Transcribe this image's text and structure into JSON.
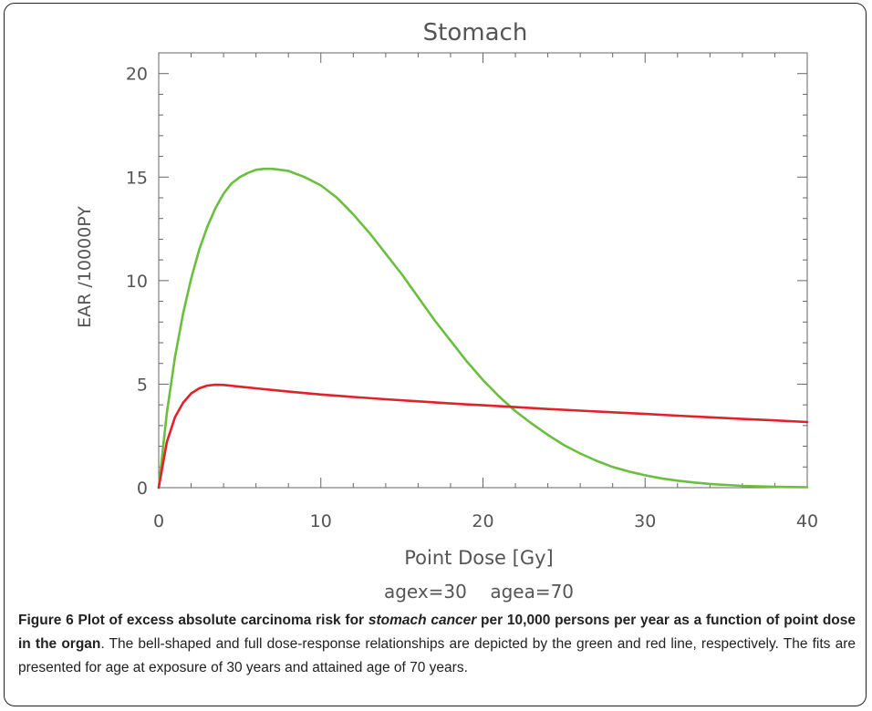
{
  "chart_data": {
    "type": "line",
    "title": "Stomach",
    "xlabel": "Point Dose [Gy]",
    "ylabel": "EAR /10000PY",
    "annotation": "agex=30    agea=70",
    "xlim": [
      0,
      40
    ],
    "ylim": [
      0,
      21
    ],
    "x_ticks": [
      0,
      10,
      20,
      30,
      40
    ],
    "y_ticks": [
      0,
      5,
      10,
      15,
      20
    ],
    "grid": false,
    "series": [
      {
        "color": "#6abf3f",
        "x": [
          0,
          0.5,
          1,
          1.5,
          2,
          2.5,
          3,
          3.5,
          4,
          4.5,
          5,
          5.5,
          6,
          6.5,
          7,
          7.5,
          8,
          9,
          10,
          11,
          12,
          13,
          14,
          15,
          16,
          17,
          18,
          19,
          20,
          21,
          22,
          23,
          24,
          25,
          26,
          27,
          28,
          29,
          30,
          31,
          32,
          33,
          34,
          35,
          36,
          37,
          38,
          39,
          40
        ],
        "y": [
          0,
          3.6,
          6.3,
          8.4,
          10.1,
          11.5,
          12.6,
          13.5,
          14.2,
          14.7,
          15.0,
          15.2,
          15.35,
          15.4,
          15.4,
          15.35,
          15.3,
          15.0,
          14.6,
          14.0,
          13.2,
          12.3,
          11.3,
          10.3,
          9.2,
          8.1,
          7.1,
          6.1,
          5.2,
          4.4,
          3.7,
          3.1,
          2.55,
          2.05,
          1.65,
          1.3,
          1.0,
          0.78,
          0.6,
          0.45,
          0.34,
          0.25,
          0.18,
          0.13,
          0.09,
          0.06,
          0.04,
          0.03,
          0.02
        ]
      },
      {
        "color": "#e0222a",
        "x": [
          0,
          0.5,
          1,
          1.5,
          2,
          2.5,
          3,
          3.5,
          4,
          5,
          6,
          7,
          8,
          10,
          12,
          14,
          16,
          18,
          20,
          22,
          24,
          26,
          28,
          30,
          32,
          34,
          36,
          38,
          40
        ],
        "y": [
          0,
          2.2,
          3.4,
          4.1,
          4.55,
          4.8,
          4.93,
          4.97,
          4.96,
          4.88,
          4.8,
          4.72,
          4.64,
          4.5,
          4.38,
          4.27,
          4.17,
          4.07,
          3.98,
          3.89,
          3.8,
          3.72,
          3.64,
          3.56,
          3.48,
          3.4,
          3.32,
          3.25,
          3.17
        ]
      }
    ]
  },
  "caption": {
    "figure_label": "Figure 6",
    "bold_before": "Plot of excess absolute carcinoma risk for ",
    "bold_italic": "stomach cancer",
    "bold_after": " per 10,000 persons per year as a function of point dose in the organ",
    "body": ". The bell-shaped and full dose-response relationships are depicted by the green and red line, respectively. The fits are presented for age at exposure of 30 years and attained age of 70 years."
  }
}
